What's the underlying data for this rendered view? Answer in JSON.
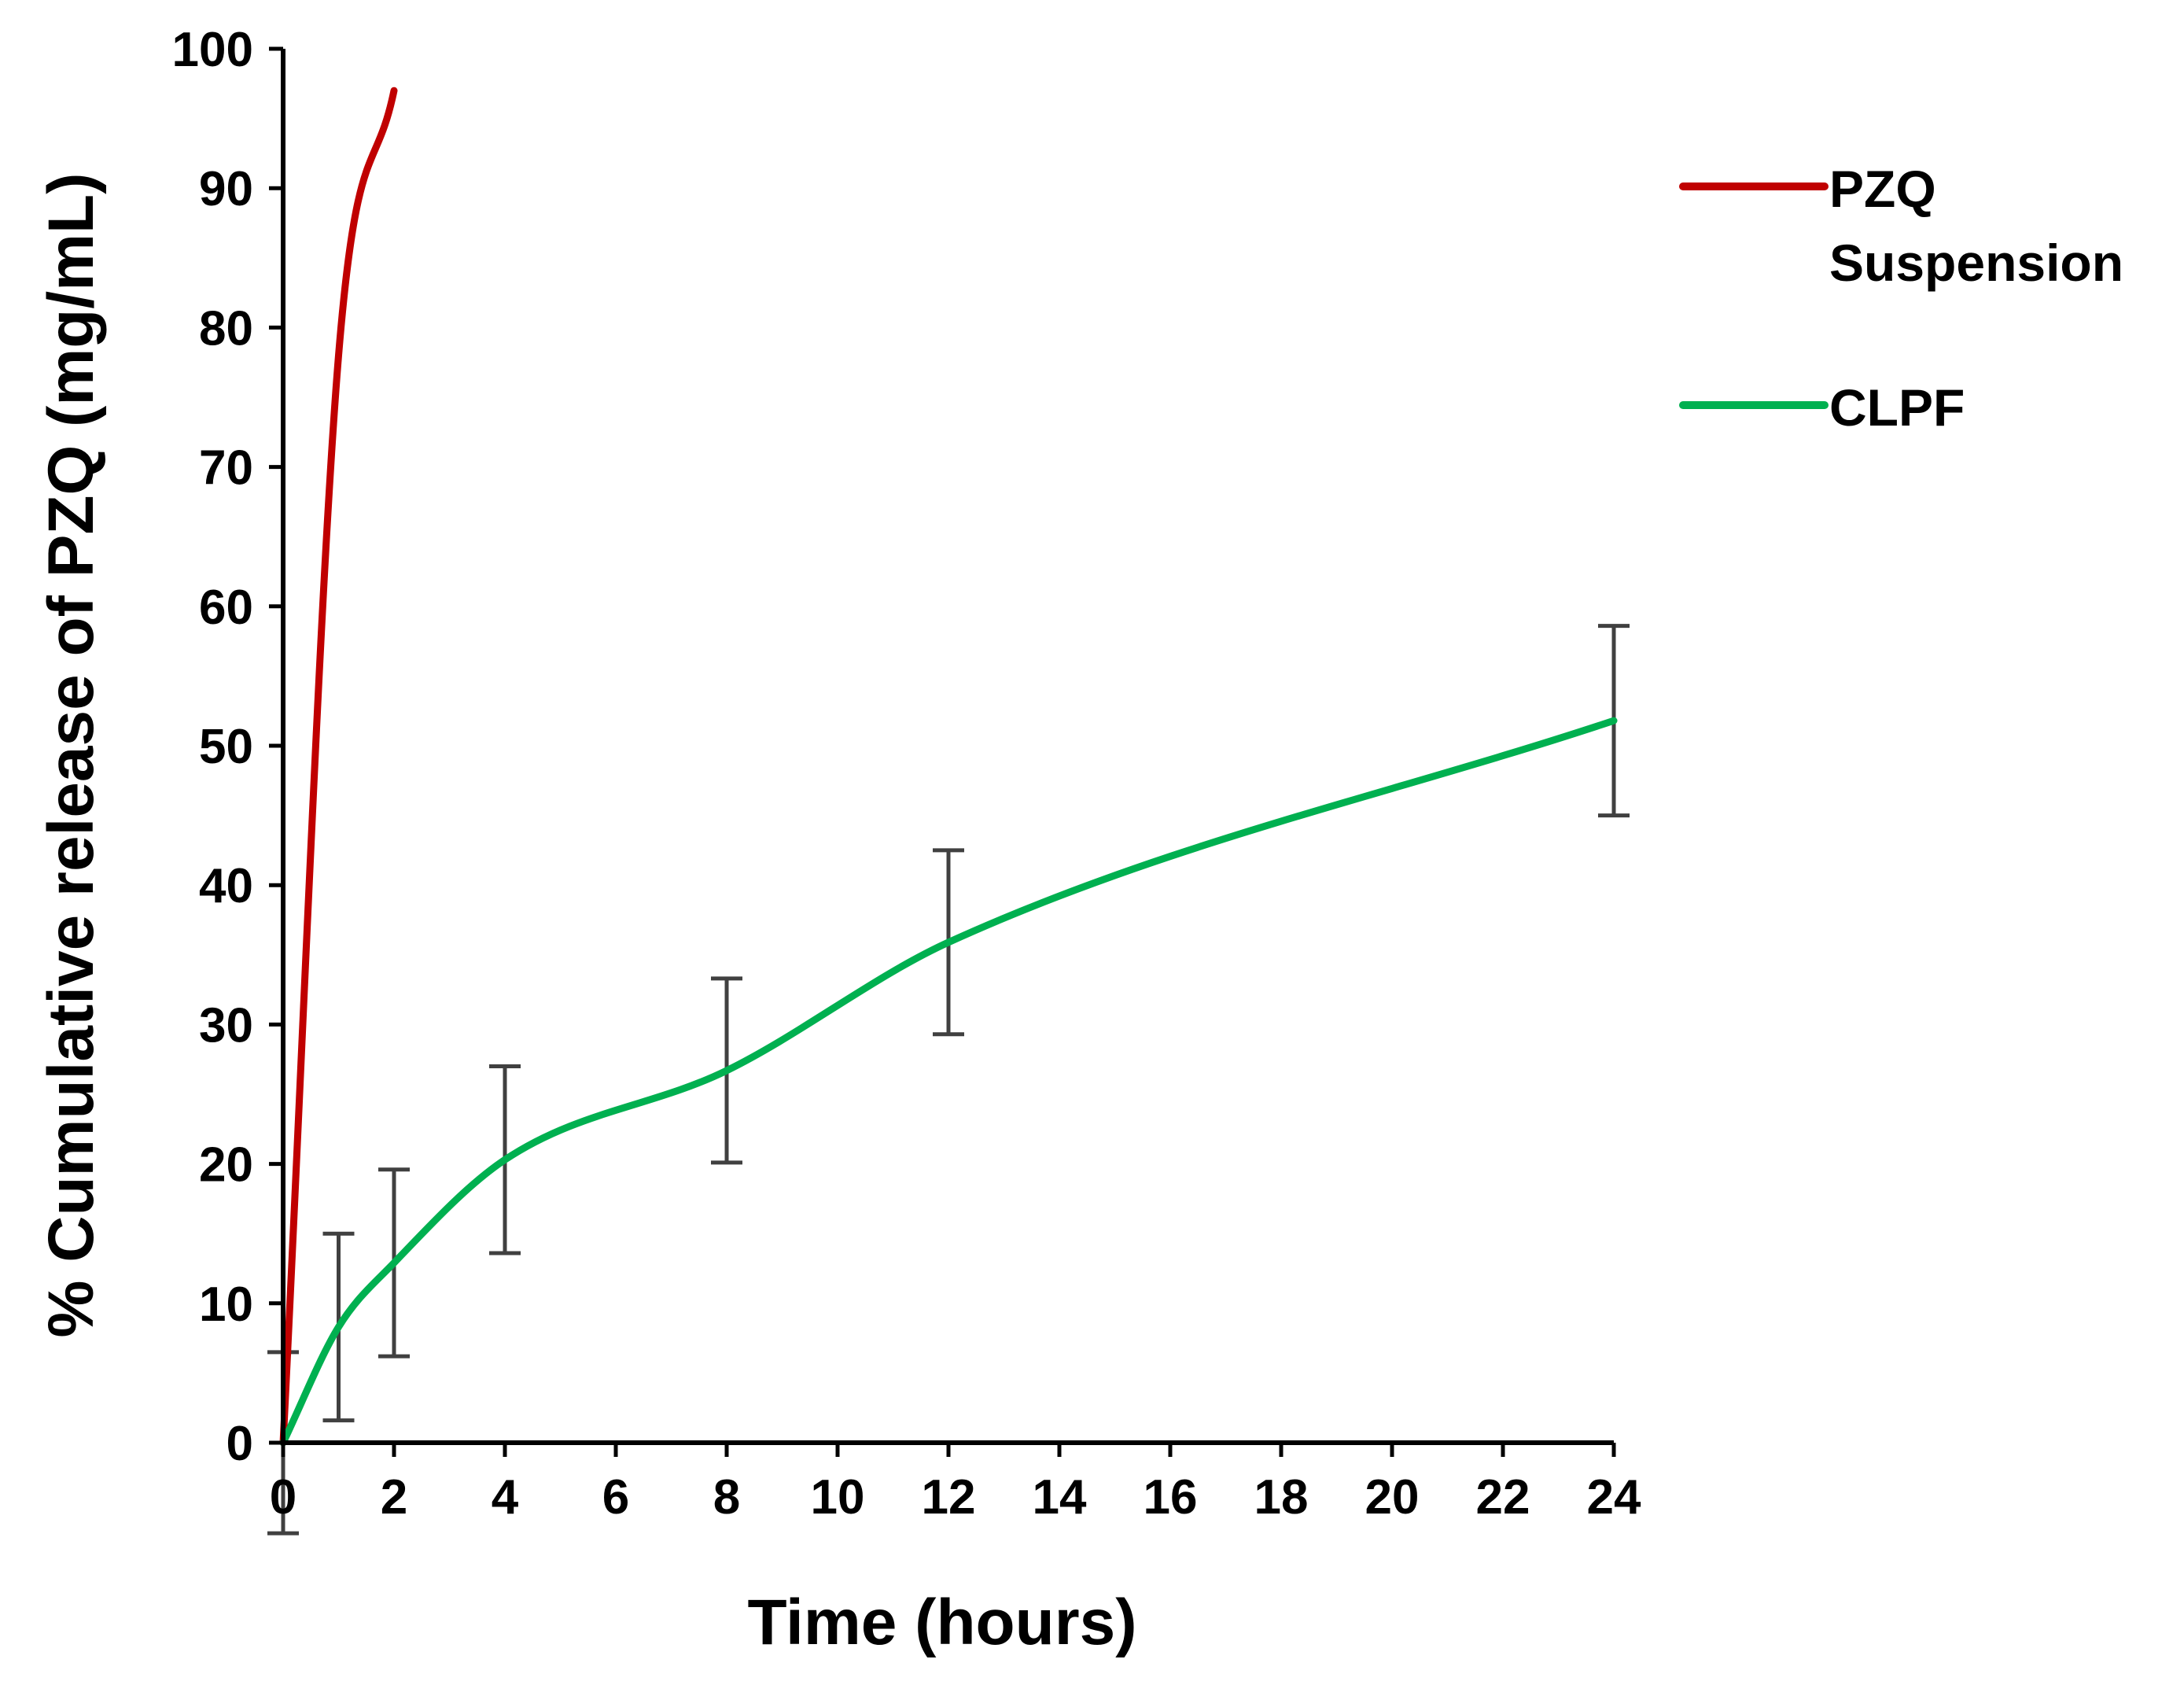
{
  "chart_data": {
    "type": "line",
    "title": "",
    "xlabel": "Time (hours)",
    "ylabel": "% Cumulative release of PZQ (mg/mL)",
    "xlim": [
      0,
      24
    ],
    "ylim": [
      0,
      100
    ],
    "x_ticks": [
      0,
      2,
      4,
      6,
      8,
      10,
      12,
      14,
      16,
      18,
      20,
      22,
      24
    ],
    "y_ticks": [
      0,
      10,
      20,
      30,
      40,
      50,
      60,
      70,
      80,
      90,
      100
    ],
    "grid": false,
    "legend_position": "top-right",
    "series": [
      {
        "name": "PZQ Suspension",
        "legend_lines": [
          "PZQ",
          "Suspension"
        ],
        "color": "#c00000",
        "x": [
          0,
          1,
          2
        ],
        "y": [
          0,
          78,
          97
        ],
        "error": [
          6.5,
          0,
          0
        ],
        "smooth": true
      },
      {
        "name": "CLPF",
        "legend_lines": [
          "CLPF"
        ],
        "color": "#00b050",
        "x": [
          0,
          1,
          2,
          4,
          8,
          12,
          24
        ],
        "y": [
          0,
          8.3,
          12.9,
          20.3,
          26.7,
          35.9,
          51.8
        ],
        "error": [
          0,
          6.7,
          6.7,
          6.7,
          6.6,
          6.6,
          6.8
        ],
        "smooth": true
      }
    ],
    "error_bar_color": "#404040"
  }
}
